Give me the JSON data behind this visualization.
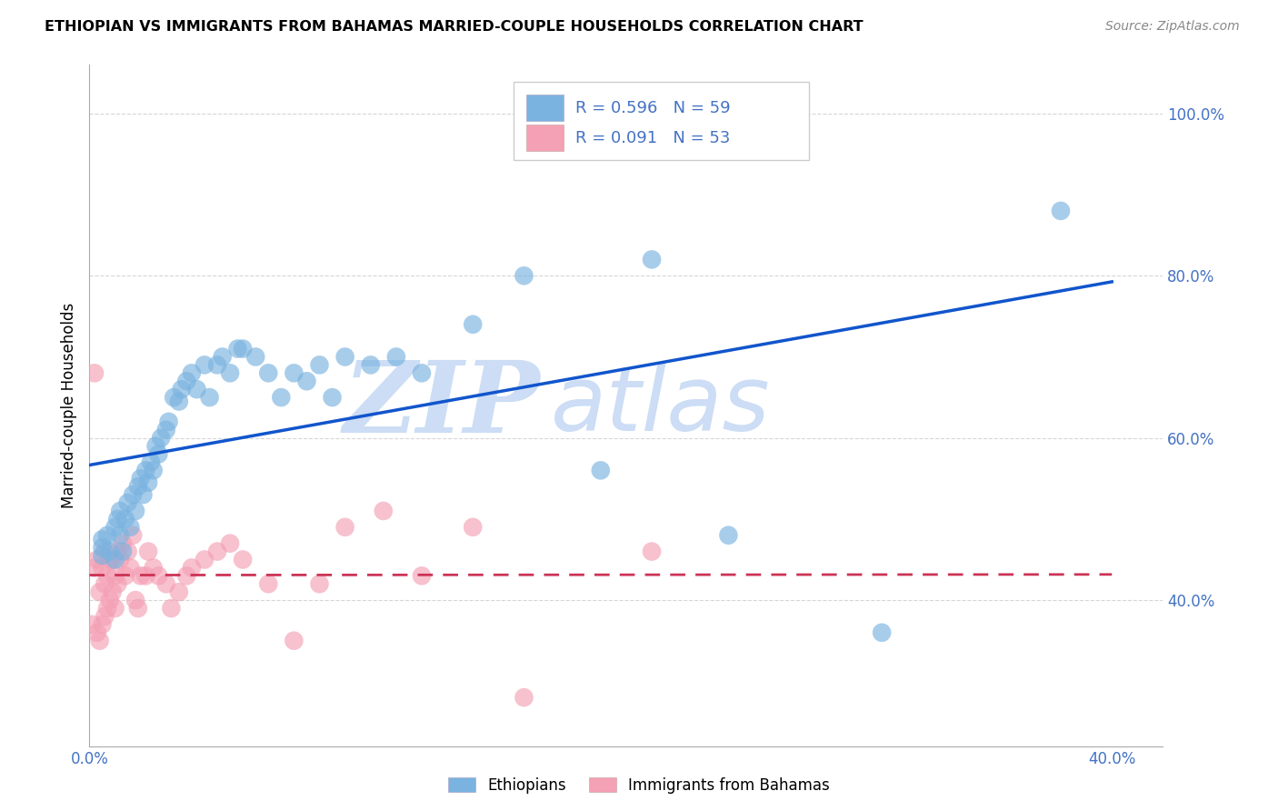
{
  "title": "ETHIOPIAN VS IMMIGRANTS FROM BAHAMAS MARRIED-COUPLE HOUSEHOLDS CORRELATION CHART",
  "source": "Source: ZipAtlas.com",
  "ylabel": "Married-couple Households",
  "xlim": [
    0.0,
    0.42
  ],
  "ylim": [
    0.22,
    1.06
  ],
  "yticks": [
    0.4,
    0.6,
    0.8,
    1.0
  ],
  "ytick_labels": [
    "40.0%",
    "60.0%",
    "80.0%",
    "100.0%"
  ],
  "xtick_positions": [
    0.0,
    0.05,
    0.1,
    0.15,
    0.2,
    0.25,
    0.3,
    0.35,
    0.4
  ],
  "xtick_labels": [
    "0.0%",
    "",
    "",
    "",
    "",
    "",
    "",
    "",
    "40.0%"
  ],
  "blue_R": 0.596,
  "blue_N": 59,
  "pink_R": 0.091,
  "pink_N": 53,
  "blue_color": "#7ab3e0",
  "pink_color": "#f4a0b5",
  "blue_line_color": "#1155cc",
  "pink_line_color": "#cc3355",
  "watermark_color": "#ccddf5",
  "legend_label_blue": "Ethiopians",
  "legend_label_pink": "Immigrants from Bahamas",
  "blue_x": [
    0.005,
    0.005,
    0.005,
    0.007,
    0.008,
    0.01,
    0.01,
    0.011,
    0.012,
    0.012,
    0.013,
    0.014,
    0.015,
    0.016,
    0.017,
    0.018,
    0.019,
    0.02,
    0.021,
    0.022,
    0.023,
    0.024,
    0.025,
    0.026,
    0.027,
    0.028,
    0.03,
    0.031,
    0.033,
    0.035,
    0.036,
    0.038,
    0.04,
    0.042,
    0.045,
    0.047,
    0.05,
    0.052,
    0.055,
    0.058,
    0.06,
    0.065,
    0.07,
    0.075,
    0.08,
    0.085,
    0.09,
    0.095,
    0.1,
    0.11,
    0.12,
    0.13,
    0.15,
    0.17,
    0.2,
    0.22,
    0.25,
    0.31,
    0.38
  ],
  "blue_y": [
    0.465,
    0.475,
    0.455,
    0.48,
    0.46,
    0.49,
    0.45,
    0.5,
    0.48,
    0.51,
    0.46,
    0.5,
    0.52,
    0.49,
    0.53,
    0.51,
    0.54,
    0.55,
    0.53,
    0.56,
    0.545,
    0.57,
    0.56,
    0.59,
    0.58,
    0.6,
    0.61,
    0.62,
    0.65,
    0.645,
    0.66,
    0.67,
    0.68,
    0.66,
    0.69,
    0.65,
    0.69,
    0.7,
    0.68,
    0.71,
    0.71,
    0.7,
    0.68,
    0.65,
    0.68,
    0.67,
    0.69,
    0.65,
    0.7,
    0.69,
    0.7,
    0.68,
    0.74,
    0.8,
    0.56,
    0.82,
    0.48,
    0.36,
    0.88
  ],
  "pink_x": [
    0.001,
    0.002,
    0.002,
    0.003,
    0.003,
    0.004,
    0.004,
    0.005,
    0.005,
    0.006,
    0.006,
    0.006,
    0.007,
    0.007,
    0.008,
    0.008,
    0.009,
    0.009,
    0.01,
    0.01,
    0.011,
    0.011,
    0.012,
    0.013,
    0.014,
    0.015,
    0.016,
    0.017,
    0.018,
    0.019,
    0.02,
    0.022,
    0.023,
    0.025,
    0.027,
    0.03,
    0.032,
    0.035,
    0.038,
    0.04,
    0.045,
    0.05,
    0.055,
    0.06,
    0.07,
    0.08,
    0.09,
    0.1,
    0.115,
    0.13,
    0.15,
    0.17,
    0.22
  ],
  "pink_y": [
    0.37,
    0.68,
    0.44,
    0.36,
    0.45,
    0.35,
    0.41,
    0.37,
    0.44,
    0.38,
    0.42,
    0.46,
    0.39,
    0.43,
    0.4,
    0.45,
    0.41,
    0.45,
    0.39,
    0.43,
    0.42,
    0.46,
    0.45,
    0.47,
    0.43,
    0.46,
    0.44,
    0.48,
    0.4,
    0.39,
    0.43,
    0.43,
    0.46,
    0.44,
    0.43,
    0.42,
    0.39,
    0.41,
    0.43,
    0.44,
    0.45,
    0.46,
    0.47,
    0.45,
    0.42,
    0.35,
    0.42,
    0.49,
    0.51,
    0.43,
    0.49,
    0.28,
    0.46
  ]
}
